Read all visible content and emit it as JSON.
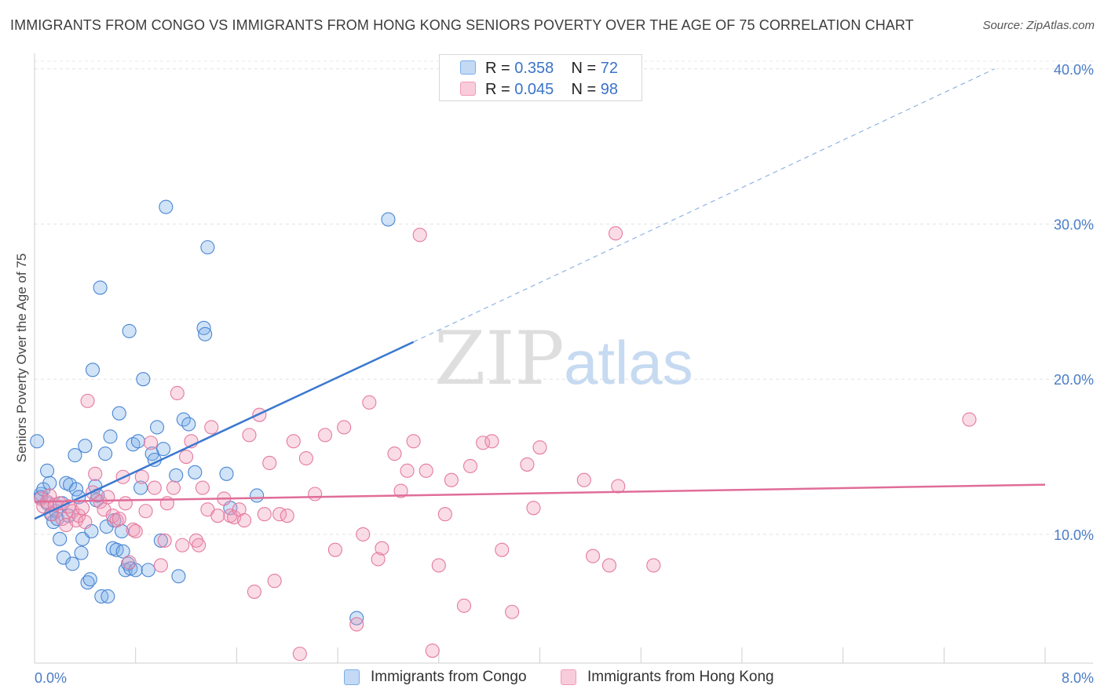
{
  "title": "IMMIGRANTS FROM CONGO VS IMMIGRANTS FROM HONG KONG SENIORS POVERTY OVER THE AGE OF 75 CORRELATION CHART",
  "source": "Source: ZipAtlas.com",
  "watermark": {
    "zip": "ZIP",
    "atlas": "atlas"
  },
  "legend_top": {
    "rows": [
      {
        "r_label": "R = ",
        "r_value": "0.358",
        "n_label": "N = ",
        "n_value": "72",
        "color": "#7baee8"
      },
      {
        "r_label": "R = ",
        "r_value": "0.045",
        "n_label": "N = ",
        "n_value": "98",
        "color": "#f19ab8"
      }
    ]
  },
  "chart_data": {
    "type": "scatter",
    "ylabel": "Seniors Poverty Over the Age of 75",
    "xlim": [
      0,
      8
    ],
    "ylim": [
      1.7,
      41
    ],
    "x_tick_labels": [
      "0.0%",
      "8.0%"
    ],
    "y_ticks": [
      10,
      20,
      30,
      40
    ],
    "y_tick_labels": [
      "10.0%",
      "20.0%",
      "30.0%",
      "40.0%"
    ],
    "grid": true,
    "series": [
      {
        "name": "Immigrants from Congo",
        "color": "#7baee8",
        "stroke": "#4a86d4",
        "trend": {
          "x0": 0,
          "y0": 11.0,
          "x1": 3.0,
          "y1": 22.4,
          "dash_to_x": 7.6,
          "dash_to_y": 40.0,
          "color": "#3a78d0"
        },
        "points": [
          [
            0.02,
            16.0
          ],
          [
            0.05,
            12.6
          ],
          [
            0.05,
            12.4
          ],
          [
            0.07,
            12.9
          ],
          [
            0.1,
            14.1
          ],
          [
            0.1,
            12.0
          ],
          [
            0.12,
            13.3
          ],
          [
            0.13,
            11.3
          ],
          [
            0.15,
            10.8
          ],
          [
            0.17,
            11.5
          ],
          [
            0.18,
            11.0
          ],
          [
            0.2,
            9.7
          ],
          [
            0.22,
            12.0
          ],
          [
            0.23,
            8.5
          ],
          [
            0.25,
            13.3
          ],
          [
            0.27,
            11.2
          ],
          [
            0.28,
            13.2
          ],
          [
            0.3,
            8.1
          ],
          [
            0.32,
            15.1
          ],
          [
            0.33,
            12.9
          ],
          [
            0.35,
            12.4
          ],
          [
            0.37,
            8.8
          ],
          [
            0.38,
            9.7
          ],
          [
            0.4,
            15.7
          ],
          [
            0.42,
            6.9
          ],
          [
            0.44,
            7.1
          ],
          [
            0.45,
            10.2
          ],
          [
            0.46,
            20.6
          ],
          [
            0.48,
            13.1
          ],
          [
            0.49,
            12.2
          ],
          [
            0.5,
            12.5
          ],
          [
            0.52,
            25.9
          ],
          [
            0.53,
            6.0
          ],
          [
            0.56,
            15.2
          ],
          [
            0.57,
            10.5
          ],
          [
            0.58,
            6.0
          ],
          [
            0.6,
            16.3
          ],
          [
            0.62,
            9.1
          ],
          [
            0.63,
            10.9
          ],
          [
            0.65,
            9.0
          ],
          [
            0.67,
            17.8
          ],
          [
            0.69,
            10.2
          ],
          [
            0.7,
            8.9
          ],
          [
            0.72,
            7.7
          ],
          [
            0.74,
            8.1
          ],
          [
            0.75,
            23.1
          ],
          [
            0.76,
            7.8
          ],
          [
            0.78,
            15.8
          ],
          [
            0.8,
            7.7
          ],
          [
            0.82,
            16.0
          ],
          [
            0.84,
            13.0
          ],
          [
            0.86,
            20.0
          ],
          [
            0.9,
            7.7
          ],
          [
            0.93,
            15.2
          ],
          [
            0.95,
            14.8
          ],
          [
            0.97,
            16.9
          ],
          [
            1.0,
            9.6
          ],
          [
            1.02,
            15.5
          ],
          [
            1.04,
            31.1
          ],
          [
            1.12,
            13.8
          ],
          [
            1.14,
            7.3
          ],
          [
            1.18,
            17.4
          ],
          [
            1.22,
            17.1
          ],
          [
            1.27,
            14.0
          ],
          [
            1.34,
            23.3
          ],
          [
            1.35,
            22.9
          ],
          [
            1.37,
            28.5
          ],
          [
            1.52,
            13.9
          ],
          [
            1.55,
            11.7
          ],
          [
            1.76,
            12.5
          ],
          [
            2.55,
            4.6
          ],
          [
            2.8,
            30.3
          ]
        ]
      },
      {
        "name": "Immigrants from Hong Kong",
        "color": "#f19ab8",
        "stroke": "#e47aa0",
        "trend": {
          "x0": 0,
          "y0": 12.1,
          "x1": 8.0,
          "y1": 13.2,
          "color": "#e06d98"
        },
        "points": [
          [
            0.05,
            12.3
          ],
          [
            0.07,
            11.8
          ],
          [
            0.1,
            12.1
          ],
          [
            0.12,
            12.5
          ],
          [
            0.14,
            11.3
          ],
          [
            0.16,
            11.9
          ],
          [
            0.2,
            12.0
          ],
          [
            0.22,
            11.0
          ],
          [
            0.25,
            10.6
          ],
          [
            0.27,
            11.8
          ],
          [
            0.3,
            11.5
          ],
          [
            0.33,
            10.9
          ],
          [
            0.35,
            11.2
          ],
          [
            0.38,
            11.7
          ],
          [
            0.4,
            10.8
          ],
          [
            0.42,
            18.6
          ],
          [
            0.46,
            12.7
          ],
          [
            0.48,
            13.9
          ],
          [
            0.52,
            12.1
          ],
          [
            0.55,
            11.6
          ],
          [
            0.58,
            12.4
          ],
          [
            0.62,
            11.2
          ],
          [
            0.65,
            10.9
          ],
          [
            0.67,
            11.0
          ],
          [
            0.7,
            13.7
          ],
          [
            0.72,
            12.0
          ],
          [
            0.75,
            8.2
          ],
          [
            0.78,
            10.3
          ],
          [
            0.8,
            10.2
          ],
          [
            0.85,
            13.7
          ],
          [
            0.88,
            11.5
          ],
          [
            0.92,
            15.9
          ],
          [
            0.95,
            13.0
          ],
          [
            1.0,
            8.0
          ],
          [
            1.03,
            9.6
          ],
          [
            1.05,
            12.0
          ],
          [
            1.1,
            13.0
          ],
          [
            1.13,
            19.1
          ],
          [
            1.17,
            9.3
          ],
          [
            1.2,
            15.0
          ],
          [
            1.24,
            16.0
          ],
          [
            1.28,
            9.6
          ],
          [
            1.3,
            9.3
          ],
          [
            1.33,
            13.0
          ],
          [
            1.37,
            11.6
          ],
          [
            1.4,
            16.9
          ],
          [
            1.45,
            11.2
          ],
          [
            1.5,
            12.3
          ],
          [
            1.55,
            11.2
          ],
          [
            1.58,
            11.1
          ],
          [
            1.62,
            11.6
          ],
          [
            1.66,
            10.9
          ],
          [
            1.7,
            16.4
          ],
          [
            1.74,
            6.3
          ],
          [
            1.78,
            17.7
          ],
          [
            1.82,
            11.3
          ],
          [
            1.86,
            14.6
          ],
          [
            1.9,
            7.0
          ],
          [
            1.94,
            11.3
          ],
          [
            2.0,
            11.2
          ],
          [
            2.05,
            16.0
          ],
          [
            2.1,
            2.3
          ],
          [
            2.15,
            14.9
          ],
          [
            2.22,
            12.6
          ],
          [
            2.3,
            16.4
          ],
          [
            2.38,
            9.0
          ],
          [
            2.45,
            16.9
          ],
          [
            2.55,
            4.2
          ],
          [
            2.6,
            10.0
          ],
          [
            2.65,
            18.5
          ],
          [
            2.72,
            8.4
          ],
          [
            2.75,
            9.1
          ],
          [
            2.85,
            15.2
          ],
          [
            2.9,
            12.8
          ],
          [
            2.95,
            14.1
          ],
          [
            3.0,
            16.0
          ],
          [
            3.05,
            29.3
          ],
          [
            3.1,
            14.1
          ],
          [
            3.15,
            2.5
          ],
          [
            3.2,
            8.0
          ],
          [
            3.25,
            11.3
          ],
          [
            3.3,
            13.5
          ],
          [
            3.4,
            5.4
          ],
          [
            3.45,
            14.4
          ],
          [
            3.55,
            15.9
          ],
          [
            3.62,
            16.0
          ],
          [
            3.7,
            9.0
          ],
          [
            3.78,
            5.0
          ],
          [
            3.9,
            14.5
          ],
          [
            3.95,
            11.7
          ],
          [
            4.0,
            15.6
          ],
          [
            4.35,
            13.5
          ],
          [
            4.42,
            8.6
          ],
          [
            4.55,
            8.0
          ],
          [
            4.6,
            29.4
          ],
          [
            4.62,
            13.1
          ],
          [
            4.9,
            8.0
          ],
          [
            7.4,
            17.4
          ]
        ]
      }
    ]
  }
}
